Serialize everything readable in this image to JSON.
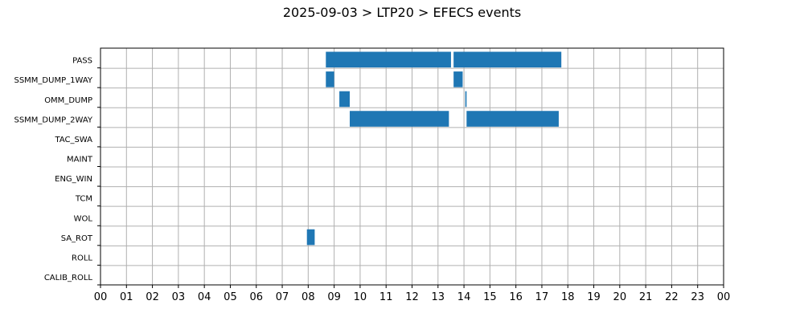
{
  "title": "2025-09-03 > LTP20 > EFECS events",
  "chart_data": {
    "type": "bar",
    "orientation": "horizontal-timeline",
    "title": "2025-09-03 > LTP20 > EFECS events",
    "xlabel": "",
    "ylabel": "",
    "xlim": [
      0,
      24
    ],
    "x_ticks": [
      "00",
      "01",
      "02",
      "03",
      "04",
      "05",
      "06",
      "07",
      "08",
      "09",
      "10",
      "11",
      "12",
      "13",
      "14",
      "15",
      "16",
      "17",
      "18",
      "19",
      "20",
      "21",
      "22",
      "23",
      "00"
    ],
    "grid": true,
    "bar_color": "#1f77b4",
    "categories": [
      "PASS",
      "SSMM_DUMP_1WAY",
      "OMM_DUMP",
      "SSMM_DUMP_2WAY",
      "TAC_SWA",
      "MAINT",
      "ENG_WIN",
      "TCM",
      "WOL",
      "SA_ROT",
      "ROLL",
      "CALIB_ROLL"
    ],
    "events": [
      {
        "category": "PASS",
        "start": 8.68,
        "end": 13.5
      },
      {
        "category": "PASS",
        "start": 13.6,
        "end": 17.75
      },
      {
        "category": "SSMM_DUMP_1WAY",
        "start": 8.68,
        "end": 9.0
      },
      {
        "category": "SSMM_DUMP_1WAY",
        "start": 13.6,
        "end": 13.95
      },
      {
        "category": "OMM_DUMP",
        "start": 9.2,
        "end": 9.6
      },
      {
        "category": "OMM_DUMP",
        "start": 14.05,
        "end": 14.1
      },
      {
        "category": "SSMM_DUMP_2WAY",
        "start": 9.6,
        "end": 13.42
      },
      {
        "category": "SSMM_DUMP_2WAY",
        "start": 14.1,
        "end": 17.65
      },
      {
        "category": "SA_ROT",
        "start": 7.95,
        "end": 8.25
      }
    ]
  }
}
